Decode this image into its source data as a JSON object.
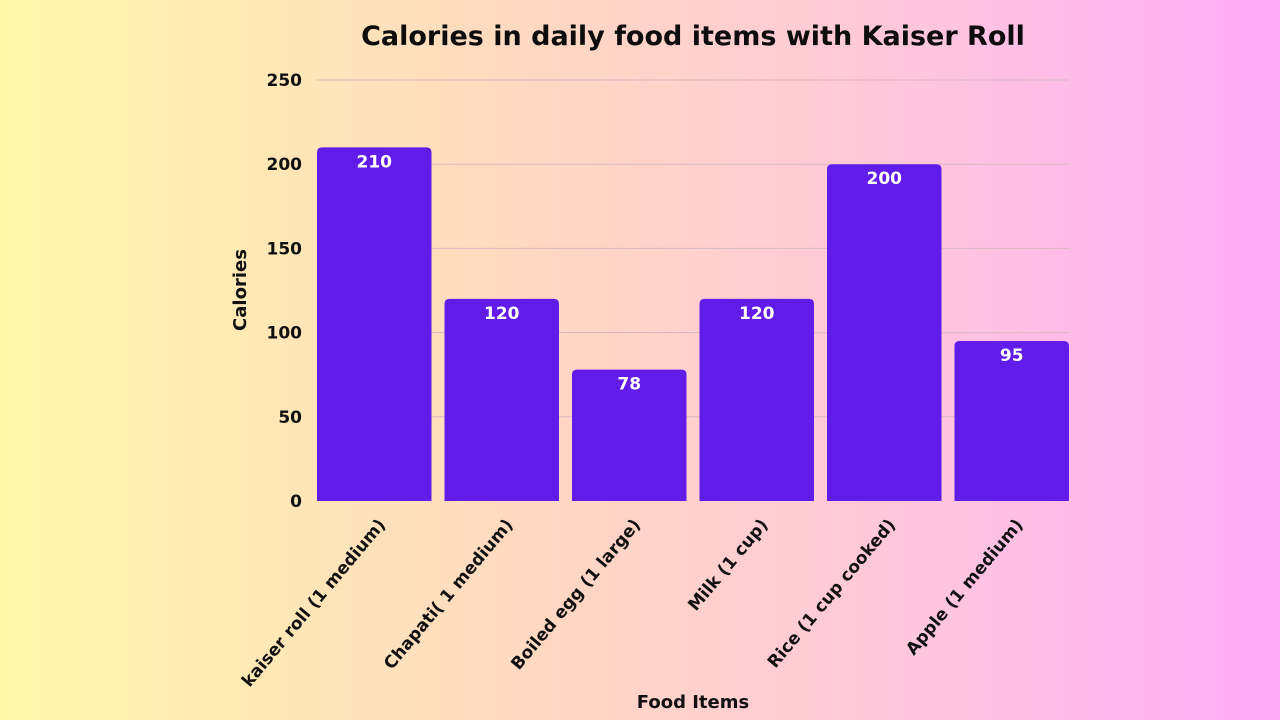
{
  "chart_data": {
    "type": "bar",
    "title": "Calories in daily food items with Kaiser Roll",
    "xlabel": "Food Items",
    "ylabel": "Calories",
    "categories": [
      "kaiser roll (1 medium)",
      "Chapati( 1 medium)",
      "Boiled egg (1 large)",
      "Milk (1 cup)",
      "Rice (1 cup cooked)",
      "Apple (1 medium)"
    ],
    "values": [
      210,
      120,
      78,
      120,
      200,
      95
    ],
    "ylim": [
      0,
      250
    ],
    "yticks": [
      0,
      50,
      100,
      150,
      200,
      250
    ],
    "grid": true,
    "legend": "none",
    "data_labels": true,
    "bar_color": "#611cea",
    "text_color": "#111111",
    "data_label_color": "#ffffff"
  }
}
